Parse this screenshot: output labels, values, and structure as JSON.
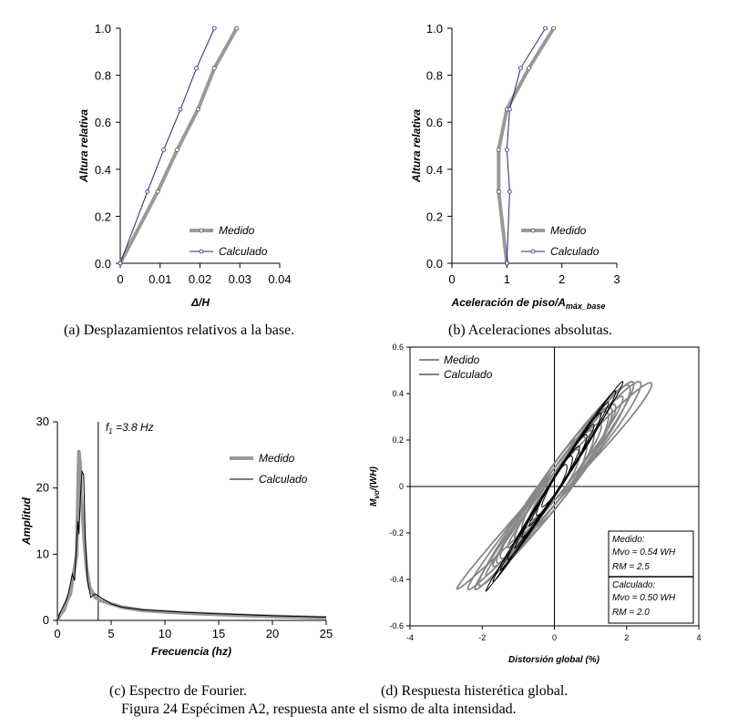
{
  "chart_data": [
    {
      "id": "a",
      "type": "line",
      "caption": "(a) Desplazamientos relativos a la base.",
      "xlabel": "Δ/H",
      "ylabel": "Altura relativa",
      "xlim": [
        0,
        0.04
      ],
      "ylim": [
        0,
        1.0
      ],
      "xticks": [
        0,
        0.01,
        0.02,
        0.03,
        0.04
      ],
      "xtick_labels": [
        "0",
        "0.01",
        "0.02",
        "0.03",
        "0.04"
      ],
      "yticks": [
        0,
        0.2,
        0.4,
        0.6,
        0.8,
        1.0
      ],
      "ytick_labels": [
        "0.0",
        "0.2",
        "0.4",
        "0.6",
        "0.8",
        "1.0"
      ],
      "legend_position": "bottom-right",
      "series": [
        {
          "name": "Medido",
          "color": "#999999",
          "points": [
            [
              0,
              0
            ],
            [
              0.0094,
              0.305
            ],
            [
              0.0143,
              0.483
            ],
            [
              0.0195,
              0.655
            ],
            [
              0.0236,
              0.83
            ],
            [
              0.0292,
              1.0
            ]
          ]
        },
        {
          "name": "Calculado",
          "color": "#1f2a8a",
          "points": [
            [
              0,
              0
            ],
            [
              0.0068,
              0.305
            ],
            [
              0.0109,
              0.483
            ],
            [
              0.0151,
              0.655
            ],
            [
              0.0191,
              0.83
            ],
            [
              0.0236,
              1.0
            ]
          ]
        }
      ]
    },
    {
      "id": "b",
      "type": "line",
      "caption": "(b) Aceleraciones absolutas.",
      "xlabel": "Aceleración de piso/A",
      "xlabel_sub": "máx_base",
      "ylabel": "Altura relativa",
      "xlim": [
        0,
        3
      ],
      "ylim": [
        0,
        1.0
      ],
      "xticks": [
        0,
        1,
        2,
        3
      ],
      "xtick_labels": [
        "0",
        "1",
        "2",
        "3"
      ],
      "yticks": [
        0,
        0.2,
        0.4,
        0.6,
        0.8,
        1.0
      ],
      "ytick_labels": [
        "0.0",
        "0.2",
        "0.4",
        "0.6",
        "0.8",
        "1.0"
      ],
      "legend_position": "bottom-right",
      "series": [
        {
          "name": "Medido",
          "color": "#999999",
          "points": [
            [
              1.0,
              0
            ],
            [
              0.85,
              0.305
            ],
            [
              0.85,
              0.483
            ],
            [
              1.0,
              0.655
            ],
            [
              1.4,
              0.83
            ],
            [
              1.85,
              1.0
            ]
          ]
        },
        {
          "name": "Calculado",
          "color": "#1f2a8a",
          "points": [
            [
              1.0,
              0
            ],
            [
              1.05,
              0.305
            ],
            [
              1.0,
              0.483
            ],
            [
              1.05,
              0.655
            ],
            [
              1.25,
              0.83
            ],
            [
              1.7,
              1.0
            ]
          ]
        }
      ]
    },
    {
      "id": "c",
      "type": "line",
      "caption": "(c) Espectro de Fourier.",
      "xlabel": "Frecuencia (hz)",
      "ylabel": "Amplitud",
      "xlim": [
        0,
        25
      ],
      "ylim": [
        0,
        30
      ],
      "xticks": [
        0,
        5,
        10,
        15,
        20,
        25
      ],
      "xtick_labels": [
        "0",
        "5",
        "10",
        "15",
        "20",
        "25"
      ],
      "yticks": [
        0,
        10,
        20,
        30
      ],
      "ytick_labels": [
        "0",
        "10",
        "20",
        "30"
      ],
      "annotation": "f1 =3.8 Hz",
      "annotation_main": "f",
      "annotation_sub": "1",
      "annotation_rest": " =3.8 Hz",
      "vline_x": 3.8,
      "legend_position": "top-right",
      "series": [
        {
          "name": "Medido",
          "color": "#999999",
          "points": [
            [
              0,
              0
            ],
            [
              0.3,
              1
            ],
            [
              0.6,
              1.5
            ],
            [
              0.9,
              3
            ],
            [
              1.2,
              4
            ],
            [
              1.4,
              6
            ],
            [
              1.6,
              8
            ],
            [
              1.8,
              10
            ],
            [
              1.9,
              18
            ],
            [
              2.0,
              25.5
            ],
            [
              2.1,
              24
            ],
            [
              2.2,
              19
            ],
            [
              2.35,
              16
            ],
            [
              2.5,
              12
            ],
            [
              2.7,
              8
            ],
            [
              3.0,
              5
            ],
            [
              3.5,
              3.5
            ],
            [
              4,
              3
            ],
            [
              5,
              2.5
            ],
            [
              6,
              2
            ],
            [
              8,
              1.5
            ],
            [
              10,
              1.3
            ],
            [
              12,
              1.1
            ],
            [
              15,
              0.9
            ],
            [
              20,
              0.6
            ],
            [
              25,
              0.4
            ]
          ]
        },
        {
          "name": "Calculado",
          "color": "#000000",
          "points": [
            [
              0,
              0
            ],
            [
              0.2,
              1
            ],
            [
              0.5,
              2
            ],
            [
              0.8,
              3
            ],
            [
              1.0,
              4
            ],
            [
              1.2,
              5.5
            ],
            [
              1.4,
              7
            ],
            [
              1.6,
              6
            ],
            [
              1.75,
              11
            ],
            [
              1.9,
              15
            ],
            [
              2.0,
              13
            ],
            [
              2.15,
              19
            ],
            [
              2.3,
              22.5
            ],
            [
              2.45,
              22
            ],
            [
              2.6,
              12
            ],
            [
              2.8,
              6
            ],
            [
              3.1,
              3.5
            ],
            [
              3.5,
              4
            ],
            [
              4,
              3.5
            ],
            [
              5,
              2.5
            ],
            [
              6,
              2
            ],
            [
              8,
              1.6
            ],
            [
              10,
              1.4
            ],
            [
              12,
              1.2
            ],
            [
              15,
              1
            ],
            [
              20,
              0.7
            ],
            [
              25,
              0.5
            ]
          ]
        }
      ]
    },
    {
      "id": "d",
      "type": "line",
      "caption": "(d) Respuesta histerética global.",
      "xlabel": "Distorsión global (%)",
      "ylabel": "Mvo/(WH)",
      "ylabel_main": "M",
      "ylabel_sub": "vo",
      "ylabel_rest": "/(WH)",
      "xlim": [
        -4,
        4
      ],
      "ylim": [
        -0.6,
        0.6
      ],
      "xticks": [
        -4,
        -2,
        0,
        2,
        4
      ],
      "xtick_labels": [
        "-4",
        "-2",
        "0",
        "2",
        "4"
      ],
      "yticks": [
        -0.6,
        -0.4,
        -0.2,
        0,
        0.2,
        0.4,
        0.6
      ],
      "ytick_labels": [
        "-0.6",
        "-0.4",
        "-0.2",
        "0",
        "0.2",
        "0.4",
        "0.6"
      ],
      "legend_position": "top-left",
      "series": [
        {
          "name": "Medido",
          "color": "#888888"
        },
        {
          "name": "Calculado",
          "color": "#000000"
        }
      ],
      "stats_box": {
        "measured_title": "Medido:",
        "measured_m": "Mvo = 0.54 WH",
        "measured_r": "RM = 2.5",
        "calc_title": "Calculado:",
        "calc_m": "Mvo = 0.50 WH",
        "calc_r": "RM = 2.0"
      }
    }
  ],
  "figure_caption": "Figura 24 Espécimen A2, respuesta ante el sismo de alta intensidad."
}
